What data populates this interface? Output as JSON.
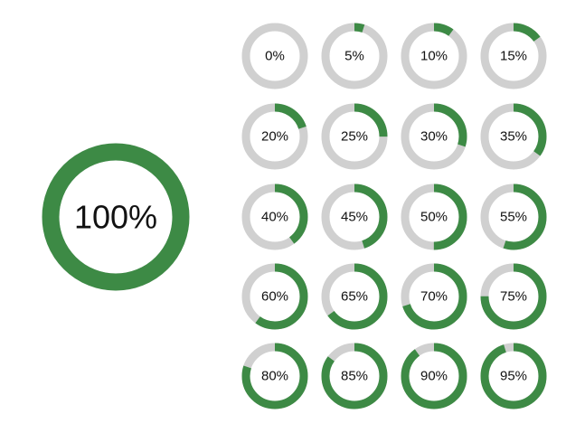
{
  "colors": {
    "progress": "#3d8a45",
    "track": "#d0d0d0",
    "text": "#111111",
    "background": "#ffffff"
  },
  "main_ring": {
    "label": "100%",
    "value": 100
  },
  "rings": [
    {
      "label": "0%",
      "value": 0
    },
    {
      "label": "5%",
      "value": 5
    },
    {
      "label": "10%",
      "value": 10
    },
    {
      "label": "15%",
      "value": 15
    },
    {
      "label": "20%",
      "value": 20
    },
    {
      "label": "25%",
      "value": 25
    },
    {
      "label": "30%",
      "value": 30
    },
    {
      "label": "35%",
      "value": 35
    },
    {
      "label": "40%",
      "value": 40
    },
    {
      "label": "45%",
      "value": 45
    },
    {
      "label": "50%",
      "value": 50
    },
    {
      "label": "55%",
      "value": 55
    },
    {
      "label": "60%",
      "value": 60
    },
    {
      "label": "65%",
      "value": 65
    },
    {
      "label": "70%",
      "value": 70
    },
    {
      "label": "75%",
      "value": 75
    },
    {
      "label": "80%",
      "value": 80
    },
    {
      "label": "85%",
      "value": 85
    },
    {
      "label": "90%",
      "value": 90
    },
    {
      "label": "95%",
      "value": 95
    }
  ]
}
